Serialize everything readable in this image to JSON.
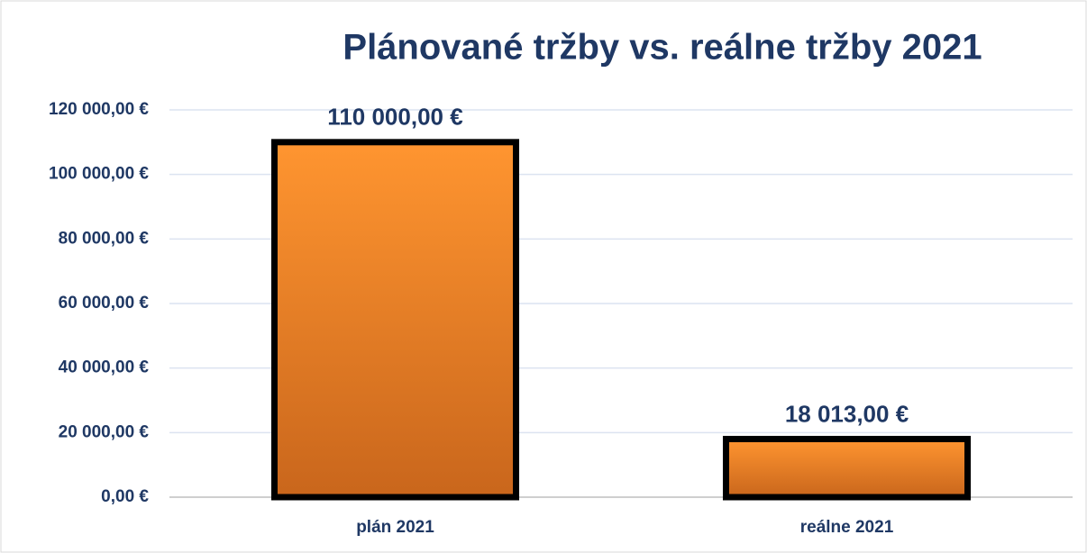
{
  "chart_data": {
    "type": "bar",
    "title": "Plánované tržby vs. reálne tržby 2021",
    "categories": [
      "plán 2021",
      "reálne 2021"
    ],
    "values": [
      110000,
      18013
    ],
    "value_labels": [
      "110 000,00 €",
      "18 013,00 €"
    ],
    "color": "#ff9530",
    "ylim": [
      0,
      120000
    ],
    "yticks": [
      {
        "value": 0,
        "label": "0,00 €"
      },
      {
        "value": 20000,
        "label": "20 000,00 €"
      },
      {
        "value": 40000,
        "label": "40 000,00 €"
      },
      {
        "value": 60000,
        "label": "60 000,00 €"
      },
      {
        "value": 80000,
        "label": "80 000,00 €"
      },
      {
        "value": 100000,
        "label": "100 000,00 €"
      },
      {
        "value": 120000,
        "label": "120 000,00 €"
      }
    ],
    "grid": true
  }
}
